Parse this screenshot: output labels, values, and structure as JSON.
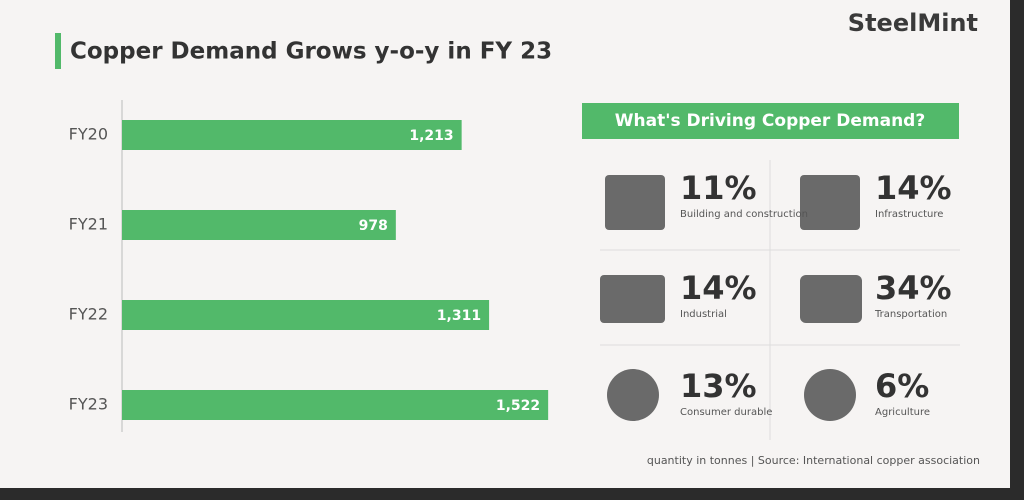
{
  "chart_data": {
    "type": "hbar",
    "title": "Copper Demand Grows y-o-y in FY 23",
    "categories": [
      "FY20",
      "FY21",
      "FY22",
      "FY23"
    ],
    "values": [
      1213,
      978,
      1311,
      1522
    ],
    "value_labels": [
      "1,213",
      "978",
      "1,311",
      "1,522"
    ],
    "color": "#52b96a",
    "xlim": [
      0,
      1600
    ]
  },
  "brand": "SteelMint",
  "drivers": {
    "title": "What's Driving Copper Demand?",
    "items": [
      {
        "share": "11%",
        "label": "Building and construction"
      },
      {
        "share": "14%",
        "label": "Infrastructure"
      },
      {
        "share": "14%",
        "label": "Industrial"
      },
      {
        "share": "34%",
        "label": "Transportation"
      },
      {
        "share": "13%",
        "label": "Consumer durable"
      },
      {
        "share": "6%",
        "label": "Agriculture"
      }
    ]
  },
  "footnote": "quantity in tonnes  |  Source: International copper association"
}
